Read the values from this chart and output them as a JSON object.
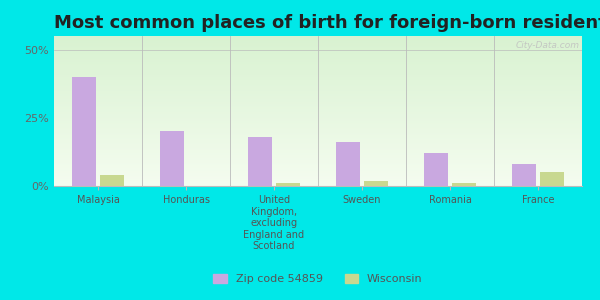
{
  "title": "Most common places of birth for foreign-born residents",
  "categories": [
    "Malaysia",
    "Honduras",
    "United\nKingdom,\nexcluding\nEngland and\nScotland",
    "Sweden",
    "Romania",
    "France"
  ],
  "zip_values": [
    40,
    20,
    18,
    16,
    12,
    8
  ],
  "wi_values": [
    4,
    0,
    1,
    2,
    1,
    5
  ],
  "zip_color": "#c9a8e0",
  "wi_color": "#c8d890",
  "background_color": "#00e8e8",
  "yticks": [
    0,
    25,
    50
  ],
  "ylim": [
    0,
    55
  ],
  "legend_zip": "Zip code 54859",
  "legend_wi": "Wisconsin",
  "bar_width": 0.28,
  "title_fontsize": 13,
  "watermark": "City-Data.com",
  "separator_color": "#bbbbbb",
  "tick_label_color": "#555555",
  "ytick_color": "#666666"
}
